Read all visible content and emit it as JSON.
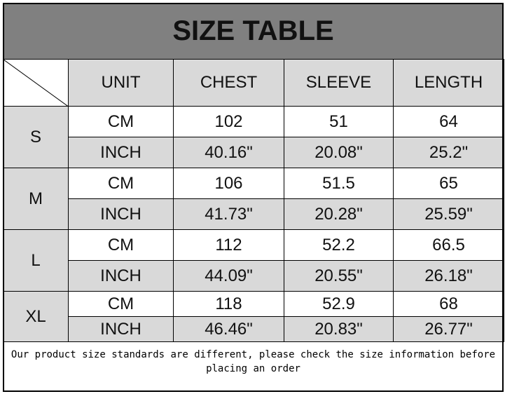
{
  "title": "SIZE TABLE",
  "headers": [
    "UNIT",
    "CHEST",
    "SLEEVE",
    "LENGTH"
  ],
  "sizes": [
    {
      "size": "S",
      "rows": [
        [
          "CM",
          "102",
          "51",
          "64"
        ],
        [
          "INCH",
          "40.16\"",
          "20.08\"",
          "25.2\""
        ]
      ]
    },
    {
      "size": "M",
      "rows": [
        [
          "CM",
          "106",
          "51.5",
          "65"
        ],
        [
          "INCH",
          "41.73\"",
          "20.28\"",
          "25.59\""
        ]
      ]
    },
    {
      "size": "L",
      "rows": [
        [
          "CM",
          "112",
          "52.2",
          "66.5"
        ],
        [
          "INCH",
          "44.09\"",
          "20.55\"",
          "26.18\""
        ]
      ]
    },
    {
      "size": "XL",
      "rows": [
        [
          "CM",
          "118",
          "52.9",
          "68"
        ],
        [
          "INCH",
          "46.46\"",
          "20.83\"",
          "26.77\""
        ]
      ]
    }
  ],
  "footer": "Our product size standards are different, please check the size information before placing an order",
  "colors": {
    "title_bg": "#808080",
    "cell_gray": "#d9d9d9"
  }
}
